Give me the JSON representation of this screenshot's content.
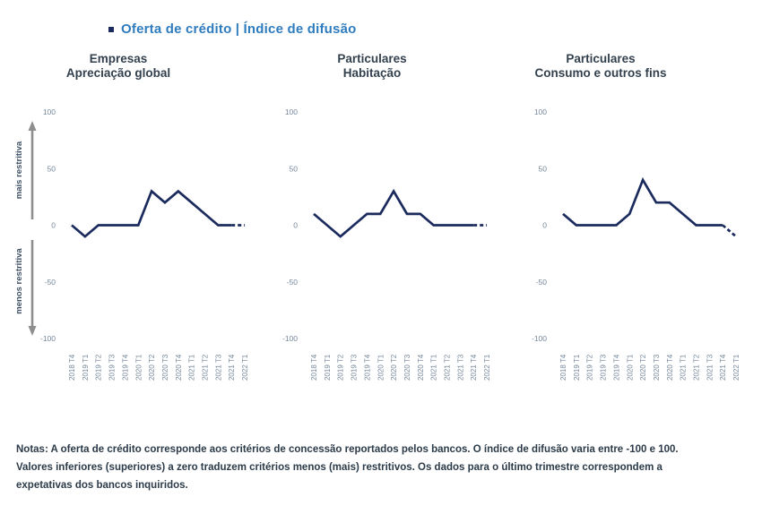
{
  "legend": {
    "label": "Oferta de crédito | Índice de difusão",
    "marker_color": "#1b2b5e"
  },
  "axis_annotations": {
    "up_label": "mais restritiva",
    "down_label": "menos restritiva"
  },
  "colors": {
    "background": "#ffffff",
    "series_line": "#1b2b5e",
    "legend_text": "#2e7cbe",
    "panel_title_text": "#33414e",
    "tick_label_text": "#74879a",
    "arrow": "#8e8e8e",
    "arrow_label_text": "#3f5063",
    "notes_text": "#2c3b49"
  },
  "notes": {
    "lines": [
      "Notas: A oferta de crédito corresponde aos critérios de concessão reportados pelos bancos. O índice de difusão varia entre -100 e 100.",
      "Valores inferiores (superiores) a zero traduzem critérios menos (mais) restritivos. Os dados para o último trimestre correspondem a",
      "expetativas dos bancos inquiridos."
    ]
  },
  "chart_data": [
    {
      "type": "line",
      "title": [
        "Empresas",
        "Apreciação global"
      ],
      "x": [
        "2018 T4",
        "2019 T1",
        "2019 T2",
        "2019 T3",
        "2019 T4",
        "2020 T1",
        "2020 T2",
        "2020 T3",
        "2020 T4",
        "2021 T1",
        "2021 T2",
        "2021 T3",
        "2021 T4",
        "2022 T1"
      ],
      "values": [
        0,
        -10,
        0,
        0,
        0,
        0,
        30,
        20,
        30,
        20,
        10,
        0,
        0,
        0
      ],
      "ylim": [
        -100,
        100
      ],
      "yticks": [
        100,
        50,
        0,
        -50,
        -100
      ],
      "grid": false,
      "last_point_is_expectation": true,
      "line_color": "#1b2b5e"
    },
    {
      "type": "line",
      "title": [
        "Particulares",
        "Habitação"
      ],
      "x": [
        "2018 T4",
        "2019 T1",
        "2019 T2",
        "2019 T3",
        "2019 T4",
        "2020 T1",
        "2020 T2",
        "2020 T3",
        "2020 T4",
        "2021 T1",
        "2021 T2",
        "2021 T3",
        "2021 T4",
        "2022 T1"
      ],
      "values": [
        10,
        0,
        -10,
        0,
        10,
        10,
        30,
        10,
        10,
        0,
        0,
        0,
        0,
        0
      ],
      "ylim": [
        -100,
        100
      ],
      "yticks": [
        100,
        50,
        0,
        -50,
        -100
      ],
      "grid": false,
      "last_point_is_expectation": true,
      "line_color": "#1b2b5e"
    },
    {
      "type": "line",
      "title": [
        "Particulares",
        "Consumo e outros fins"
      ],
      "x": [
        "2018 T4",
        "2019 T1",
        "2019 T2",
        "2019 T3",
        "2019 T4",
        "2020 T1",
        "2020 T2",
        "2020 T3",
        "2020 T4",
        "2021 T1",
        "2021 T2",
        "2021 T3",
        "2021 T4",
        "2022 T1"
      ],
      "values": [
        10,
        0,
        0,
        0,
        0,
        10,
        40,
        20,
        20,
        10,
        0,
        0,
        0,
        -10
      ],
      "ylim": [
        -100,
        100
      ],
      "yticks": [
        100,
        50,
        0,
        -50,
        -100
      ],
      "grid": false,
      "last_point_is_expectation": true,
      "line_color": "#1b2b5e"
    }
  ]
}
